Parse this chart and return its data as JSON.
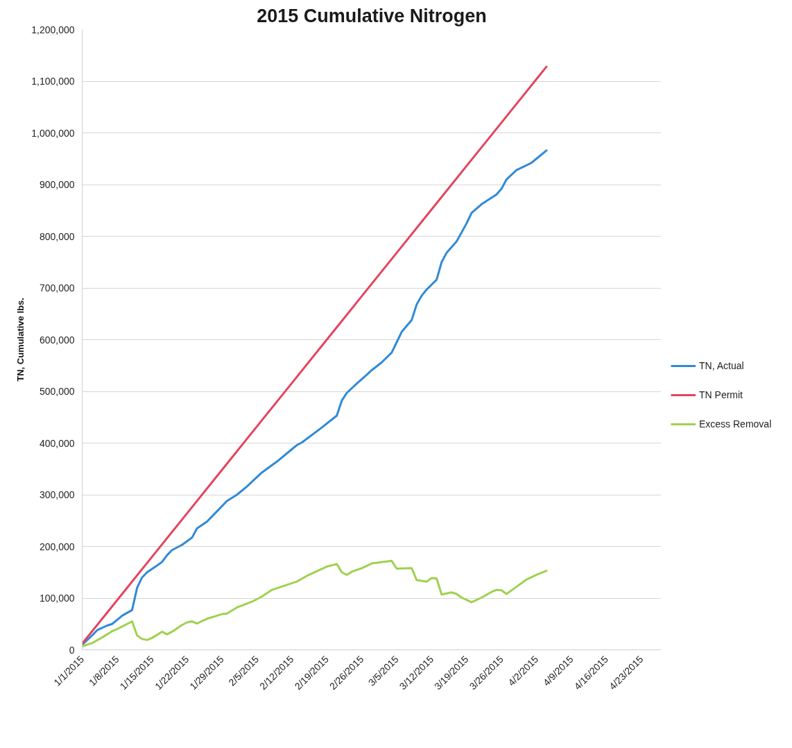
{
  "chart_data": {
    "type": "line",
    "title": "2015 Cumulative Nitrogen",
    "ylabel": "TN, Cumulative lbs.",
    "xlim": [
      "2015-01-01",
      "2015-04-27"
    ],
    "xticks": [
      {
        "value": "2015-01-01",
        "label": "1/1/2015"
      },
      {
        "value": "2015-01-08",
        "label": "1/8/2015"
      },
      {
        "value": "2015-01-15",
        "label": "1/15/2015"
      },
      {
        "value": "2015-01-22",
        "label": "1/22/2015"
      },
      {
        "value": "2015-01-29",
        "label": "1/29/2015"
      },
      {
        "value": "2015-02-05",
        "label": "2/5/2015"
      },
      {
        "value": "2015-02-12",
        "label": "2/12/2015"
      },
      {
        "value": "2015-02-19",
        "label": "2/19/2015"
      },
      {
        "value": "2015-02-26",
        "label": "2/26/2015"
      },
      {
        "value": "2015-03-05",
        "label": "3/5/2015"
      },
      {
        "value": "2015-03-12",
        "label": "3/12/2015"
      },
      {
        "value": "2015-03-19",
        "label": "3/19/2015"
      },
      {
        "value": "2015-03-26",
        "label": "3/26/2015"
      },
      {
        "value": "2015-04-02",
        "label": "4/2/2015"
      },
      {
        "value": "2015-04-09",
        "label": "4/9/2015"
      },
      {
        "value": "2015-04-16",
        "label": "4/16/2015"
      },
      {
        "value": "2015-04-23",
        "label": "4/23/2015"
      }
    ],
    "ylim": [
      0,
      1200000
    ],
    "yticks": [
      0,
      {
        "value": 100000,
        "label": "100,000"
      },
      {
        "value": 200000,
        "label": "200,000"
      },
      {
        "value": 300000,
        "label": "300,000"
      },
      {
        "value": 400000,
        "label": "400,000"
      },
      {
        "value": 500000,
        "label": "500,000"
      },
      {
        "value": 600000,
        "label": "600,000"
      },
      {
        "value": 700000,
        "label": "700,000"
      },
      {
        "value": 800000,
        "label": "800,000"
      },
      {
        "value": 900000,
        "label": "900,000"
      },
      {
        "value": 1000000,
        "label": "1,000,000"
      },
      {
        "value": 1100000,
        "label": "1,100,000"
      },
      {
        "value": 1200000,
        "label": "1,200,000"
      }
    ],
    "grid": "y",
    "legend": "right",
    "series": [
      {
        "name": "TN, Actual",
        "color": "#2f8ad6",
        "x": [
          "2015-01-01",
          "2015-01-03",
          "2015-01-04",
          "2015-01-06",
          "2015-01-07",
          "2015-01-08",
          "2015-01-09",
          "2015-01-11",
          "2015-01-12",
          "2015-01-13",
          "2015-01-14",
          "2015-01-16",
          "2015-01-17",
          "2015-01-18",
          "2015-01-19",
          "2015-01-21",
          "2015-01-23",
          "2015-01-24",
          "2015-01-26",
          "2015-01-28",
          "2015-01-30",
          "2015-02-01",
          "2015-02-03",
          "2015-02-04",
          "2015-02-06",
          "2015-02-09",
          "2015-02-13",
          "2015-02-14",
          "2015-02-18",
          "2015-02-21",
          "2015-02-22",
          "2015-02-23",
          "2015-02-25",
          "2015-02-27",
          "2015-02-28",
          "2015-03-02",
          "2015-03-04",
          "2015-03-05",
          "2015-03-06",
          "2015-03-08",
          "2015-03-09",
          "2015-03-10",
          "2015-03-11",
          "2015-03-13",
          "2015-03-14",
          "2015-03-15",
          "2015-03-17",
          "2015-03-19",
          "2015-03-20",
          "2015-03-22",
          "2015-03-25",
          "2015-03-26",
          "2015-03-27",
          "2015-03-29",
          "2015-04-01",
          "2015-04-02",
          "2015-04-04"
        ],
        "values": [
          10000,
          28000,
          38000,
          47000,
          50000,
          58000,
          66000,
          77000,
          120000,
          140000,
          150000,
          163000,
          170000,
          183000,
          193000,
          203000,
          217000,
          235000,
          248000,
          268000,
          288000,
          300000,
          316000,
          325000,
          343000,
          364000,
          396000,
          401000,
          430000,
          453000,
          482000,
          497000,
          515000,
          532000,
          541000,
          556000,
          575000,
          595000,
          615000,
          638000,
          668000,
          685000,
          697000,
          716000,
          750000,
          768000,
          790000,
          825000,
          845000,
          862000,
          881000,
          892000,
          910000,
          928000,
          942000,
          950000,
          966000
        ]
      },
      {
        "name": "TN Permit",
        "color": "#e4435e",
        "x": [
          "2015-01-01",
          "2015-01-08",
          "2015-01-15",
          "2015-01-22",
          "2015-01-29",
          "2015-02-05",
          "2015-02-12",
          "2015-02-19",
          "2015-02-26",
          "2015-03-05",
          "2015-03-12",
          "2015-03-19",
          "2015-03-26",
          "2015-04-02",
          "2015-04-04"
        ],
        "values": [
          12000,
          96000,
          180000,
          264000,
          348000,
          432000,
          516000,
          600000,
          684000,
          768000,
          852000,
          936000,
          1020000,
          1104000,
          1128000
        ]
      },
      {
        "name": "Excess Removal",
        "color": "#9fd14f",
        "x": [
          "2015-01-01",
          "2015-01-03",
          "2015-01-05",
          "2015-01-07",
          "2015-01-08",
          "2015-01-10",
          "2015-01-11",
          "2015-01-12",
          "2015-01-13",
          "2015-01-14",
          "2015-01-15",
          "2015-01-17",
          "2015-01-18",
          "2015-01-19",
          "2015-01-21",
          "2015-01-22",
          "2015-01-23",
          "2015-01-24",
          "2015-01-26",
          "2015-01-29",
          "2015-01-30",
          "2015-02-01",
          "2015-02-04",
          "2015-02-06",
          "2015-02-08",
          "2015-02-13",
          "2015-02-15",
          "2015-02-19",
          "2015-02-21",
          "2015-02-22",
          "2015-02-23",
          "2015-02-24",
          "2015-02-26",
          "2015-02-28",
          "2015-03-04",
          "2015-03-05",
          "2015-03-08",
          "2015-03-09",
          "2015-03-11",
          "2015-03-12",
          "2015-03-13",
          "2015-03-14",
          "2015-03-16",
          "2015-03-17",
          "2015-03-18",
          "2015-03-20",
          "2015-03-22",
          "2015-03-24",
          "2015-03-25",
          "2015-03-26",
          "2015-03-27",
          "2015-03-29",
          "2015-03-31",
          "2015-04-02",
          "2015-04-04"
        ],
        "values": [
          7000,
          13000,
          24000,
          36000,
          40000,
          50000,
          55000,
          28000,
          21000,
          19000,
          23000,
          35000,
          30000,
          35000,
          48000,
          53000,
          55000,
          51000,
          60000,
          69000,
          70000,
          82000,
          93000,
          103000,
          116000,
          132000,
          143000,
          161000,
          166000,
          150000,
          145000,
          151000,
          158000,
          167000,
          172000,
          157000,
          158000,
          135000,
          132000,
          139000,
          138000,
          107000,
          111000,
          108000,
          101000,
          92000,
          101000,
          112000,
          116000,
          115000,
          108000,
          122000,
          136000,
          145000,
          153000
        ]
      }
    ]
  }
}
